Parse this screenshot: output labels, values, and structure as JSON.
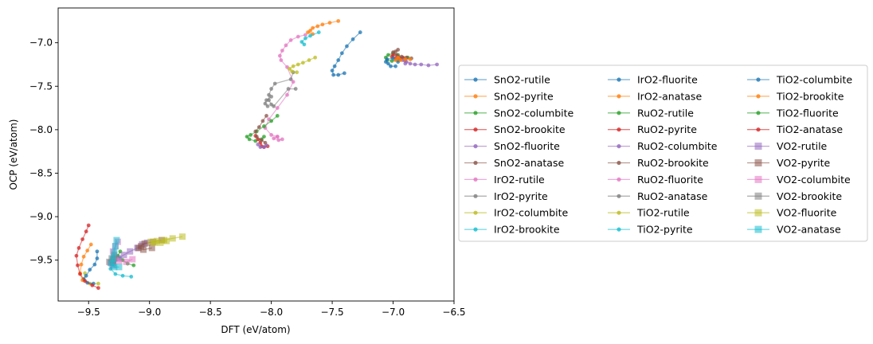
{
  "chart_data": {
    "type": "scatter",
    "title": "",
    "xlabel": "DFT (eV/atom)",
    "ylabel": "OCP (eV/atom)",
    "xlim": [
      -9.75,
      -6.5
    ],
    "ylim": [
      -9.97,
      -6.6
    ],
    "xticks": [
      -9.5,
      -9.0,
      -8.5,
      -8.0,
      -7.5,
      -7.0,
      -6.5
    ],
    "yticks": [
      -9.5,
      -9.0,
      -8.5,
      -8.0,
      -7.5,
      -7.0
    ],
    "xtick_labels": [
      "−9.5",
      "−9.0",
      "−8.5",
      "−8.0",
      "−7.5",
      "−7.0",
      "−6.5"
    ],
    "ytick_labels": [
      "−9.5",
      "−9.0",
      "−8.5",
      "−8.0",
      "−7.5",
      "−7.0"
    ],
    "legend_position": "center-right, outside plot",
    "legend_columns": 3,
    "series": [
      {
        "name": "SnO2-rutile",
        "color": "#1f77b4",
        "marker": "circle",
        "points": [
          [
            -7.27,
            -6.88
          ],
          [
            -7.33,
            -6.96
          ],
          [
            -7.38,
            -7.04
          ],
          [
            -7.42,
            -7.12
          ],
          [
            -7.45,
            -7.2
          ],
          [
            -7.48,
            -7.27
          ],
          [
            -7.5,
            -7.32
          ],
          [
            -7.49,
            -7.37
          ],
          [
            -7.45,
            -7.37
          ],
          [
            -7.4,
            -7.35
          ]
        ]
      },
      {
        "name": "SnO2-pyrite",
        "color": "#ff7f0e",
        "marker": "circle",
        "points": [
          [
            -7.45,
            -6.75
          ],
          [
            -7.52,
            -6.77
          ],
          [
            -7.58,
            -6.79
          ],
          [
            -7.62,
            -6.81
          ],
          [
            -7.66,
            -6.83
          ],
          [
            -7.68,
            -6.86
          ],
          [
            -7.7,
            -6.88
          ],
          [
            -7.66,
            -6.9
          ]
        ]
      },
      {
        "name": "SnO2-columbite",
        "color": "#2ca02c",
        "marker": "circle",
        "points": [
          [
            -6.96,
            -7.14
          ],
          [
            -7.0,
            -7.12
          ],
          [
            -7.04,
            -7.14
          ],
          [
            -7.06,
            -7.17
          ],
          [
            -7.05,
            -7.2
          ],
          [
            -7.01,
            -7.21
          ],
          [
            -6.96,
            -7.2
          ],
          [
            -6.92,
            -7.18
          ],
          [
            -6.88,
            -7.17
          ]
        ]
      },
      {
        "name": "SnO2-brookite",
        "color": "#d62728",
        "marker": "circle",
        "points": [
          [
            -6.9,
            -7.2
          ],
          [
            -6.94,
            -7.19
          ],
          [
            -6.98,
            -7.18
          ],
          [
            -7.01,
            -7.16
          ],
          [
            -7.0,
            -7.14
          ],
          [
            -6.96,
            -7.16
          ],
          [
            -6.92,
            -7.17
          ]
        ]
      },
      {
        "name": "SnO2-fluorite",
        "color": "#9467bd",
        "marker": "circle",
        "points": [
          [
            -6.64,
            -7.25
          ],
          [
            -6.71,
            -7.26
          ],
          [
            -6.77,
            -7.25
          ],
          [
            -6.82,
            -7.25
          ],
          [
            -6.86,
            -7.24
          ],
          [
            -6.89,
            -7.22
          ],
          [
            -6.92,
            -7.2
          ],
          [
            -6.9,
            -7.24
          ]
        ]
      },
      {
        "name": "SnO2-anatase",
        "color": "#8c564b",
        "marker": "circle",
        "points": [
          [
            -6.96,
            -7.08
          ],
          [
            -6.98,
            -7.1
          ],
          [
            -7.0,
            -7.11
          ],
          [
            -6.97,
            -7.14
          ],
          [
            -6.93,
            -7.16
          ],
          [
            -6.89,
            -7.17
          ],
          [
            -6.85,
            -7.18
          ]
        ]
      },
      {
        "name": "IrO2-rutile",
        "color": "#e377c2",
        "marker": "circle",
        "points": [
          [
            -7.72,
            -6.91
          ],
          [
            -7.78,
            -6.93
          ],
          [
            -7.84,
            -6.97
          ],
          [
            -7.88,
            -7.03
          ],
          [
            -7.91,
            -7.09
          ],
          [
            -7.93,
            -7.15
          ],
          [
            -7.92,
            -7.2
          ],
          [
            -7.87,
            -7.28
          ],
          [
            -7.82,
            -7.45
          ],
          [
            -7.87,
            -7.6
          ],
          [
            -7.95,
            -7.75
          ],
          [
            -8.02,
            -7.88
          ],
          [
            -8.05,
            -7.98
          ],
          [
            -8.0,
            -8.06
          ],
          [
            -7.95,
            -8.08
          ]
        ]
      },
      {
        "name": "IrO2-pyrite",
        "color": "#7f7f7f",
        "marker": "circle",
        "points": [
          [
            -7.82,
            -7.34
          ],
          [
            -7.84,
            -7.42
          ],
          [
            -7.97,
            -7.47
          ],
          [
            -8.0,
            -7.53
          ],
          [
            -8.02,
            -7.6
          ],
          [
            -8.02,
            -7.66
          ],
          [
            -8.0,
            -7.71
          ],
          [
            -7.98,
            -7.73
          ],
          [
            -7.86,
            -7.53
          ],
          [
            -7.8,
            -7.53
          ]
        ]
      },
      {
        "name": "IrO2-columbite",
        "color": "#bcbd22",
        "marker": "circle",
        "points": [
          [
            -7.64,
            -7.17
          ],
          [
            -7.69,
            -7.2
          ],
          [
            -7.74,
            -7.23
          ],
          [
            -7.78,
            -7.25
          ],
          [
            -7.82,
            -7.27
          ],
          [
            -7.85,
            -7.3
          ],
          [
            -7.83,
            -7.33
          ],
          [
            -7.79,
            -7.34
          ]
        ]
      },
      {
        "name": "IrO2-brookite",
        "color": "#17becf",
        "marker": "circle",
        "points": [
          [
            -7.61,
            -6.88
          ],
          [
            -7.68,
            -6.92
          ],
          [
            -7.72,
            -6.95
          ],
          [
            -7.75,
            -6.99
          ],
          [
            -7.73,
            -7.02
          ]
        ]
      },
      {
        "name": "IrO2-fluorite",
        "color": "#1f77b4",
        "marker": "circle",
        "points": [
          [
            -6.98,
            -7.27
          ],
          [
            -7.02,
            -7.27
          ],
          [
            -7.04,
            -7.24
          ],
          [
            -7.06,
            -7.22
          ],
          [
            -7.05,
            -7.19
          ],
          [
            -7.0,
            -7.18
          ],
          [
            -6.96,
            -7.22
          ]
        ]
      },
      {
        "name": "IrO2-anatase",
        "color": "#ff7f0e",
        "marker": "circle",
        "points": [
          [
            -6.86,
            -7.19
          ],
          [
            -6.9,
            -7.19
          ],
          [
            -6.94,
            -7.2
          ],
          [
            -6.98,
            -7.2
          ],
          [
            -6.96,
            -7.17
          ]
        ]
      },
      {
        "name": "RuO2-rutile",
        "color": "#2ca02c",
        "marker": "circle",
        "points": [
          [
            -7.95,
            -7.84
          ],
          [
            -8.0,
            -7.9
          ],
          [
            -8.06,
            -7.96
          ],
          [
            -8.12,
            -8.02
          ],
          [
            -8.17,
            -8.06
          ],
          [
            -8.2,
            -8.08
          ],
          [
            -8.18,
            -8.11
          ],
          [
            -8.13,
            -8.13
          ],
          [
            -8.08,
            -8.11
          ],
          [
            -8.06,
            -8.08
          ]
        ]
      },
      {
        "name": "RuO2-pyrite",
        "color": "#d62728",
        "marker": "circle",
        "points": [
          [
            -8.13,
            -8.07
          ],
          [
            -8.11,
            -8.11
          ],
          [
            -8.09,
            -8.15
          ],
          [
            -8.08,
            -8.19
          ],
          [
            -8.06,
            -8.2
          ],
          [
            -8.03,
            -8.19
          ]
        ]
      },
      {
        "name": "RuO2-columbite",
        "color": "#9467bd",
        "marker": "circle",
        "points": [
          [
            -8.11,
            -8.17
          ],
          [
            -8.09,
            -8.2
          ],
          [
            -8.06,
            -8.2
          ],
          [
            -8.04,
            -8.18
          ]
        ]
      },
      {
        "name": "RuO2-brookite",
        "color": "#8c564b",
        "marker": "circle",
        "points": [
          [
            -8.04,
            -7.84
          ],
          [
            -8.07,
            -7.9
          ],
          [
            -8.1,
            -7.97
          ],
          [
            -8.13,
            -8.02
          ],
          [
            -8.12,
            -8.08
          ],
          [
            -8.08,
            -8.12
          ],
          [
            -8.05,
            -8.15
          ]
        ]
      },
      {
        "name": "RuO2-fluorite",
        "color": "#e377c2",
        "marker": "circle",
        "points": [
          [
            -7.95,
            -8.08
          ],
          [
            -7.98,
            -8.1
          ],
          [
            -7.94,
            -8.12
          ],
          [
            -7.91,
            -8.11
          ]
        ]
      },
      {
        "name": "RuO2-anatase",
        "color": "#7f7f7f",
        "marker": "circle",
        "points": [
          [
            -8.0,
            -7.62
          ],
          [
            -8.04,
            -7.66
          ],
          [
            -8.05,
            -7.7
          ],
          [
            -8.03,
            -7.73
          ]
        ]
      },
      {
        "name": "TiO2-rutile",
        "color": "#bcbd22",
        "marker": "circle",
        "points": [
          [
            -9.42,
            -9.77
          ],
          [
            -9.49,
            -9.77
          ],
          [
            -9.54,
            -9.72
          ],
          [
            -9.53,
            -9.65
          ]
        ]
      },
      {
        "name": "TiO2-pyrite",
        "color": "#17becf",
        "marker": "circle",
        "points": [
          [
            -9.15,
            -9.69
          ],
          [
            -9.22,
            -9.68
          ],
          [
            -9.28,
            -9.66
          ],
          [
            -9.32,
            -9.6
          ],
          [
            -9.29,
            -9.53
          ],
          [
            -9.24,
            -9.48
          ]
        ]
      },
      {
        "name": "TiO2-columbite",
        "color": "#1f77b4",
        "marker": "circle",
        "points": [
          [
            -9.46,
            -9.77
          ],
          [
            -9.51,
            -9.76
          ],
          [
            -9.54,
            -9.72
          ],
          [
            -9.52,
            -9.68
          ],
          [
            -9.49,
            -9.61
          ],
          [
            -9.45,
            -9.55
          ],
          [
            -9.43,
            -9.48
          ],
          [
            -9.43,
            -9.4
          ]
        ]
      },
      {
        "name": "TiO2-brookite",
        "color": "#ff7f0e",
        "marker": "circle",
        "points": [
          [
            -9.55,
            -9.73
          ],
          [
            -9.57,
            -9.65
          ],
          [
            -9.56,
            -9.55
          ],
          [
            -9.54,
            -9.46
          ],
          [
            -9.51,
            -9.39
          ],
          [
            -9.48,
            -9.32
          ]
        ]
      },
      {
        "name": "TiO2-fluorite",
        "color": "#2ca02c",
        "marker": "circle",
        "points": [
          [
            -9.13,
            -9.56
          ],
          [
            -9.18,
            -9.54
          ],
          [
            -9.22,
            -9.5
          ],
          [
            -9.26,
            -9.45
          ],
          [
            -9.24,
            -9.4
          ]
        ]
      },
      {
        "name": "TiO2-anatase",
        "color": "#d62728",
        "marker": "circle",
        "points": [
          [
            -9.42,
            -9.82
          ],
          [
            -9.47,
            -9.79
          ],
          [
            -9.53,
            -9.74
          ],
          [
            -9.57,
            -9.66
          ],
          [
            -9.59,
            -9.56
          ],
          [
            -9.6,
            -9.45
          ],
          [
            -9.58,
            -9.36
          ],
          [
            -9.55,
            -9.26
          ],
          [
            -9.52,
            -9.17
          ],
          [
            -9.5,
            -9.1
          ]
        ]
      },
      {
        "name": "VO2-rutile",
        "color": "#9467bd",
        "marker": "square",
        "points": [
          [
            -9.02,
            -9.3
          ],
          [
            -9.06,
            -9.32
          ],
          [
            -9.1,
            -9.36
          ],
          [
            -9.16,
            -9.4
          ],
          [
            -9.21,
            -9.44
          ],
          [
            -9.26,
            -9.48
          ],
          [
            -9.3,
            -9.5
          ],
          [
            -9.32,
            -9.53
          ],
          [
            -9.3,
            -9.56
          ]
        ]
      },
      {
        "name": "VO2-pyrite",
        "color": "#8c564b",
        "marker": "square",
        "points": [
          [
            -8.9,
            -9.27
          ],
          [
            -8.97,
            -9.29
          ],
          [
            -9.04,
            -9.31
          ],
          [
            -9.07,
            -9.34
          ],
          [
            -9.09,
            -9.36
          ],
          [
            -9.05,
            -9.38
          ],
          [
            -8.98,
            -9.36
          ]
        ]
      },
      {
        "name": "VO2-columbite",
        "color": "#e377c2",
        "marker": "square",
        "points": [
          [
            -9.26,
            -9.29
          ],
          [
            -9.28,
            -9.34
          ],
          [
            -9.3,
            -9.4
          ],
          [
            -9.29,
            -9.46
          ],
          [
            -9.25,
            -9.51
          ],
          [
            -9.19,
            -9.52
          ],
          [
            -9.14,
            -9.49
          ]
        ]
      },
      {
        "name": "VO2-brookite",
        "color": "#7f7f7f",
        "marker": "square",
        "points": [
          [
            -9.33,
            -9.52
          ],
          [
            -9.31,
            -9.48
          ],
          [
            -9.29,
            -9.44
          ],
          [
            -9.29,
            -9.48
          ],
          [
            -9.3,
            -9.53
          ]
        ]
      },
      {
        "name": "VO2-fluorite",
        "color": "#bcbd22",
        "marker": "square",
        "points": [
          [
            -8.73,
            -9.23
          ],
          [
            -8.81,
            -9.25
          ],
          [
            -8.88,
            -9.27
          ],
          [
            -8.94,
            -9.28
          ],
          [
            -8.99,
            -9.29
          ],
          [
            -8.96,
            -9.3
          ],
          [
            -8.91,
            -9.3
          ],
          [
            -8.86,
            -9.28
          ]
        ]
      },
      {
        "name": "VO2-anatase",
        "color": "#17becf",
        "marker": "square",
        "points": [
          [
            -9.27,
            -9.27
          ],
          [
            -9.28,
            -9.34
          ],
          [
            -9.29,
            -9.41
          ],
          [
            -9.3,
            -9.48
          ],
          [
            -9.31,
            -9.54
          ],
          [
            -9.29,
            -9.58
          ],
          [
            -9.25,
            -9.58
          ]
        ]
      }
    ]
  }
}
